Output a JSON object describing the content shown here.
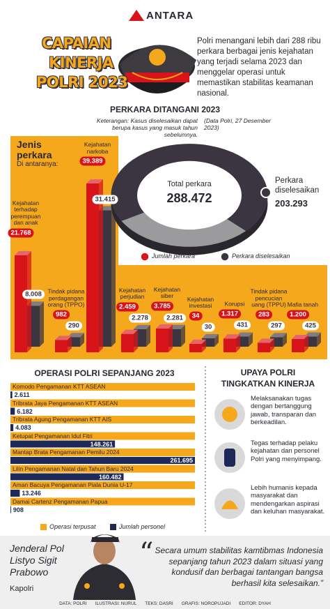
{
  "header": {
    "logo": "ANTARA",
    "title": [
      "CAPAIAN",
      "KINERJA",
      "POLRI 2023"
    ],
    "intro": "Polri menangani lebih dari 288 ribu perkara berbagai jenis kejahatan yang terjadi selama 2023 dan menggelar operasi untuk memastikan stabilitas keamanan nasional."
  },
  "chart_data": [
    {
      "type": "bar",
      "orientation": "vertical",
      "title": "PERKARA DITANGANI 2023",
      "note": "Keterangan: Kasus diselesaikan dapat berupa kasus yang masuk tahun sebelumnya.",
      "source": "(Data Polri, 27 Desember 2023)",
      "category_heading": "Jenis perkara",
      "category_subheading": "Di antaranya:",
      "categories": [
        "Kejahatan terhadap perempuan dan anak",
        "Tindak pidana perdagangan orang (TPPO)",
        "Kejahatan narkoba",
        "Kejahatan perjudian",
        "Kejahatan siber",
        "Kejahatan investasi",
        "Korupsi",
        "Tindak pidana pencucian uang (TPPU)",
        "Mafia tanah"
      ],
      "series": [
        {
          "name": "Jumlah perkara",
          "color": "#d7141a",
          "values": [
            21768,
            982,
            39389,
            2459,
            3785,
            34,
            1317,
            283,
            1200
          ],
          "value_labels": [
            "21.768",
            "982",
            "39.389",
            "2.459",
            "3.785",
            "34",
            "1.317",
            "283",
            "1.200"
          ]
        },
        {
          "name": "Perkara diselesaikan",
          "color": "#3a3540",
          "values": [
            8008,
            290,
            31415,
            2278,
            2281,
            30,
            431,
            297,
            425
          ],
          "value_labels": [
            "8.008",
            "290",
            "31.415",
            "2.278",
            "2.281",
            "30",
            "431",
            "297",
            "425"
          ]
        }
      ]
    },
    {
      "type": "donut",
      "categories": [
        "Total perkara",
        "Perkara diselesaikan"
      ],
      "values": [
        288472,
        203293
      ],
      "value_labels": [
        "288.472",
        "203.293"
      ],
      "colors": [
        "#9b9a9c",
        "#3a3540"
      ]
    },
    {
      "type": "bar",
      "orientation": "horizontal",
      "title": "OPERASI POLRI SEPANJANG 2023",
      "categories": [
        "Komodo Pengamanan KTT ASEAN",
        "Tribrata Jaya Pengamanan KTT ASEAN",
        "Tribrata Agung Pengamanan KTT AIS",
        "Ketupat Pengamanan Idul Fitri",
        "Mantap Brata Pengamanan Pemilu 2024",
        "Lilin Pengamanan Natal dan Tahun Baru 2024",
        "Aman Bacuya Pengamanan Piala Dunia U-17",
        "Damai Cartenz Pengamanan Papua"
      ],
      "category_legend": {
        "name": "Operasi terpusat",
        "color": "#f5a81c"
      },
      "series": [
        {
          "name": "Jumlah personel",
          "color": "#1d2a57",
          "values": [
            2611,
            6182,
            4083,
            148261,
            261695,
            160482,
            13246,
            908
          ],
          "value_labels": [
            "2.611",
            "6.182",
            "4.083",
            "148.261",
            "261.695",
            "160.482",
            "13.246",
            "908"
          ]
        }
      ]
    }
  ],
  "upaya": {
    "title": "UPAYA POLRI TINGKATKAN KINERJA",
    "items": [
      "Melaksanakan tugas dengan bertanggung jawab, transparan dan berkeadilan.",
      "Tegas terhadap pelaku kejahatan dan personel Polri yang menyimpang.",
      "Lebih humanis kepada masyarakat dan mendengarkan aspirasi dan keluhan masyarakat."
    ]
  },
  "quote": {
    "name": "Jenderal Pol Listyo Sigit Prabowo",
    "position": "Kapolri",
    "open_mark": "“",
    "text": "Secara umum stabilitas kamtibmas Indonesia sepanjang tahun 2023 dalam situasi yang kondusif dan berbagai tantangan bangsa berhasil kita selesaikan.”"
  },
  "credits": [
    "DATA: POLRI",
    "ILUSTRASI: NURUL",
    "TEKS: DASRI",
    "GRAFIS: NOROPUJADI",
    "EDITOR: DYAH"
  ]
}
